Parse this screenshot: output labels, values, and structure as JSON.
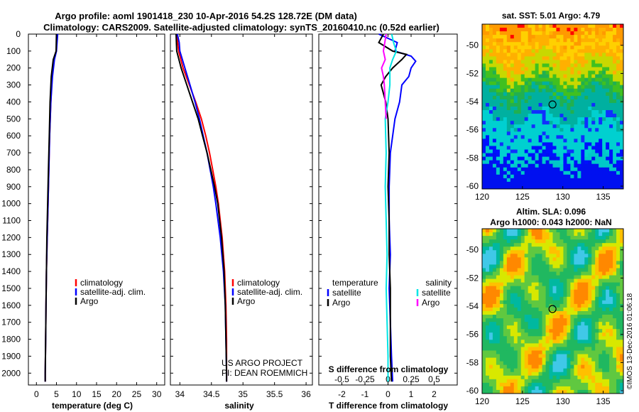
{
  "header": {
    "title_line1": "Argo profile: aoml 1901418_230 10-Apr-2016 54.2S 128.72E (DM data)",
    "title_line2": "Climatology: CARS2009. Satellite-adjusted climatology: synTS_20160410.nc (0.52d earlier)"
  },
  "credits": {
    "line1": "US ARGO PROJECT",
    "line2": "PI: DEAN ROEMMICH",
    "copyright": "©IMOS 13-Dec-2016 01:06:18"
  },
  "colors": {
    "climatology": "#ff0000",
    "satellite": "#0000ff",
    "argo": "#000000",
    "s_satellite": "#00e5e5",
    "s_argo": "#ff00ff"
  },
  "chart_data": [
    {
      "type": "line",
      "panel": "temperature",
      "xlabel": "temperature (deg C)",
      "ylabel": "",
      "xlim": [
        -2,
        32
      ],
      "ylim": [
        2070,
        0
      ],
      "xticks": [
        0,
        5,
        10,
        15,
        20,
        25,
        30
      ],
      "yticks": [
        0,
        100,
        200,
        300,
        400,
        500,
        600,
        700,
        800,
        900,
        1000,
        1100,
        1200,
        1300,
        1400,
        1500,
        1600,
        1700,
        1800,
        1900,
        2000
      ],
      "legend": {
        "placement": "lower-middle",
        "entries": [
          "climatology",
          "satellite-adj. clim.",
          "Argo"
        ]
      },
      "series": [
        {
          "name": "climatology",
          "color": "#ff0000",
          "depth": [
            0,
            100,
            150,
            250,
            400,
            600,
            800,
            1000,
            1200,
            1400,
            1600,
            1800,
            2000,
            2050
          ],
          "values": [
            5.1,
            5.0,
            4.3,
            3.9,
            3.6,
            3.3,
            3.1,
            2.9,
            2.7,
            2.5,
            2.4,
            2.3,
            2.2,
            2.2
          ]
        },
        {
          "name": "satellite-adj. clim.",
          "color": "#0000ff",
          "depth": [
            0,
            100,
            150,
            250,
            400,
            600,
            800,
            1000,
            1200,
            1400,
            1600,
            1800,
            2000,
            2050
          ],
          "values": [
            5.3,
            5.0,
            4.5,
            4.0,
            3.6,
            3.3,
            3.1,
            2.9,
            2.7,
            2.5,
            2.4,
            2.3,
            2.2,
            2.2
          ]
        },
        {
          "name": "Argo",
          "color": "#000000",
          "depth": [
            0,
            100,
            150,
            250,
            400,
            600,
            800,
            1000,
            1200,
            1400,
            1600,
            1800,
            2000,
            2050
          ],
          "values": [
            5.0,
            4.9,
            4.2,
            3.7,
            3.4,
            3.2,
            3.0,
            2.8,
            2.6,
            2.5,
            2.4,
            2.3,
            2.2,
            2.2
          ]
        }
      ]
    },
    {
      "type": "line",
      "panel": "salinity",
      "xlabel": "salinity",
      "ylabel": "",
      "xlim": [
        33.85,
        36.1
      ],
      "ylim": [
        2070,
        0
      ],
      "xticks": [
        34,
        34.5,
        35,
        35.5,
        36
      ],
      "legend": {
        "placement": "lower-right",
        "entries": [
          "climatology",
          "satellite-adj. clim.",
          "Argo"
        ]
      },
      "series": [
        {
          "name": "climatology",
          "color": "#ff0000",
          "depth": [
            0,
            100,
            200,
            300,
            400,
            500,
            600,
            700,
            800,
            900,
            1000,
            1200,
            1400,
            1600,
            1800,
            2000,
            2050
          ],
          "values": [
            33.95,
            33.98,
            34.05,
            34.15,
            34.25,
            34.34,
            34.41,
            34.47,
            34.52,
            34.57,
            34.61,
            34.67,
            34.71,
            34.73,
            34.74,
            34.74,
            34.74
          ]
        },
        {
          "name": "satellite-adj. clim.",
          "color": "#0000ff",
          "depth": [
            0,
            50,
            100,
            200,
            300,
            400,
            500,
            600,
            700,
            800,
            900,
            1000,
            1200,
            1400,
            1600,
            1800,
            2000,
            2050
          ],
          "values": [
            33.96,
            33.99,
            34.0,
            34.08,
            34.16,
            34.24,
            34.31,
            34.37,
            34.43,
            34.48,
            34.53,
            34.57,
            34.64,
            34.69,
            34.72,
            34.73,
            34.74,
            34.74
          ]
        },
        {
          "name": "Argo",
          "color": "#000000",
          "depth": [
            0,
            100,
            200,
            300,
            400,
            500,
            600,
            700,
            800,
            900,
            1000,
            1200,
            1400,
            1600,
            1800,
            2000,
            2050
          ],
          "values": [
            33.94,
            33.95,
            34.02,
            34.11,
            34.2,
            34.29,
            34.36,
            34.43,
            34.49,
            34.55,
            34.6,
            34.66,
            34.7,
            34.72,
            34.73,
            34.74,
            34.74
          ]
        }
      ]
    },
    {
      "type": "line",
      "panel": "difference",
      "xlabel": "T difference from climatology",
      "xlabel2": "S difference from climatology",
      "ylabel": "",
      "xlim": [
        -3,
        3
      ],
      "ylim": [
        2070,
        0
      ],
      "xticks": [
        -2,
        -1,
        0,
        1,
        2
      ],
      "xticks_s": [
        "-0.5",
        "-0.25",
        "0",
        "0.25",
        "0.5"
      ],
      "legend": {
        "placement": "lower",
        "headers": [
          "temperature",
          "salinity"
        ],
        "entries": [
          "satellite",
          "Argo",
          "satellite",
          "Argo"
        ]
      },
      "series": [
        {
          "name": "satellite",
          "quantity": "temperature",
          "color": "#0000ff",
          "depth": [
            0,
            50,
            100,
            130,
            160,
            200,
            250,
            300,
            400,
            500,
            700,
            900,
            1100,
            1300,
            1500,
            1700,
            1900,
            2050
          ],
          "values": [
            -0.4,
            0.4,
            0.3,
            1.0,
            1.2,
            1.0,
            0.9,
            0.6,
            0.5,
            0.3,
            0.1,
            0.05,
            0.05,
            0.1,
            0.05,
            0.1,
            0.15,
            0.2
          ]
        },
        {
          "name": "Argo",
          "quantity": "temperature",
          "color": "#000000",
          "depth": [
            0,
            50,
            100,
            120,
            150,
            200,
            250,
            300,
            400,
            500,
            700,
            900,
            1100,
            1300,
            1500,
            1700,
            1900,
            2050
          ],
          "values": [
            -0.2,
            -0.4,
            0.2,
            0.8,
            0.6,
            0.2,
            -0.1,
            -0.3,
            -0.1,
            0.0,
            0.05,
            0.0,
            0.05,
            0.05,
            0.1,
            0.1,
            0.1,
            0.15
          ]
        },
        {
          "name": "satellite",
          "quantity": "salinity",
          "color": "#00e5e5",
          "depth": [
            0,
            50,
            100,
            150,
            200,
            300,
            400,
            500,
            700,
            900,
            1100,
            1300,
            1500,
            1700,
            1900,
            2050
          ],
          "values": [
            0.04,
            0.06,
            0.09,
            0.05,
            0.02,
            0.02,
            0.0,
            -0.03,
            -0.02,
            -0.03,
            -0.02,
            -0.01,
            -0.02,
            -0.01,
            0.0,
            0.0
          ]
        },
        {
          "name": "Argo",
          "quantity": "salinity",
          "color": "#ff00ff",
          "depth": [
            0,
            100,
            150,
            200,
            250,
            300,
            400,
            500
          ],
          "values": [
            -0.02,
            -0.05,
            -0.03,
            -0.07,
            -0.05,
            -0.04,
            -0.03,
            -0.02
          ]
        }
      ]
    },
    {
      "type": "heatmap",
      "panel": "sst_map",
      "title": "sat. SST: 5.01  Argo: 4.79",
      "xlim": [
        120,
        137.5
      ],
      "ylim": [
        -60.2,
        -48.5
      ],
      "xticks": [
        120,
        125,
        130,
        135
      ],
      "yticks": [
        -50,
        -52,
        -54,
        -56,
        -58,
        -60
      ],
      "marker": {
        "lon": 128.72,
        "lat": -54.2
      }
    },
    {
      "type": "heatmap",
      "panel": "sla_map",
      "title_line1": "Altim. SLA: 0.096",
      "title_line2": "Argo h1000: 0.043  h2000: NaN",
      "xlim": [
        120,
        137.5
      ],
      "ylim": [
        -60.2,
        -48.5
      ],
      "xticks": [
        120,
        125,
        130,
        135
      ],
      "yticks": [
        -50,
        -52,
        -54,
        -56,
        -58,
        -60
      ],
      "marker": {
        "lon": 128.72,
        "lat": -54.2
      }
    }
  ]
}
